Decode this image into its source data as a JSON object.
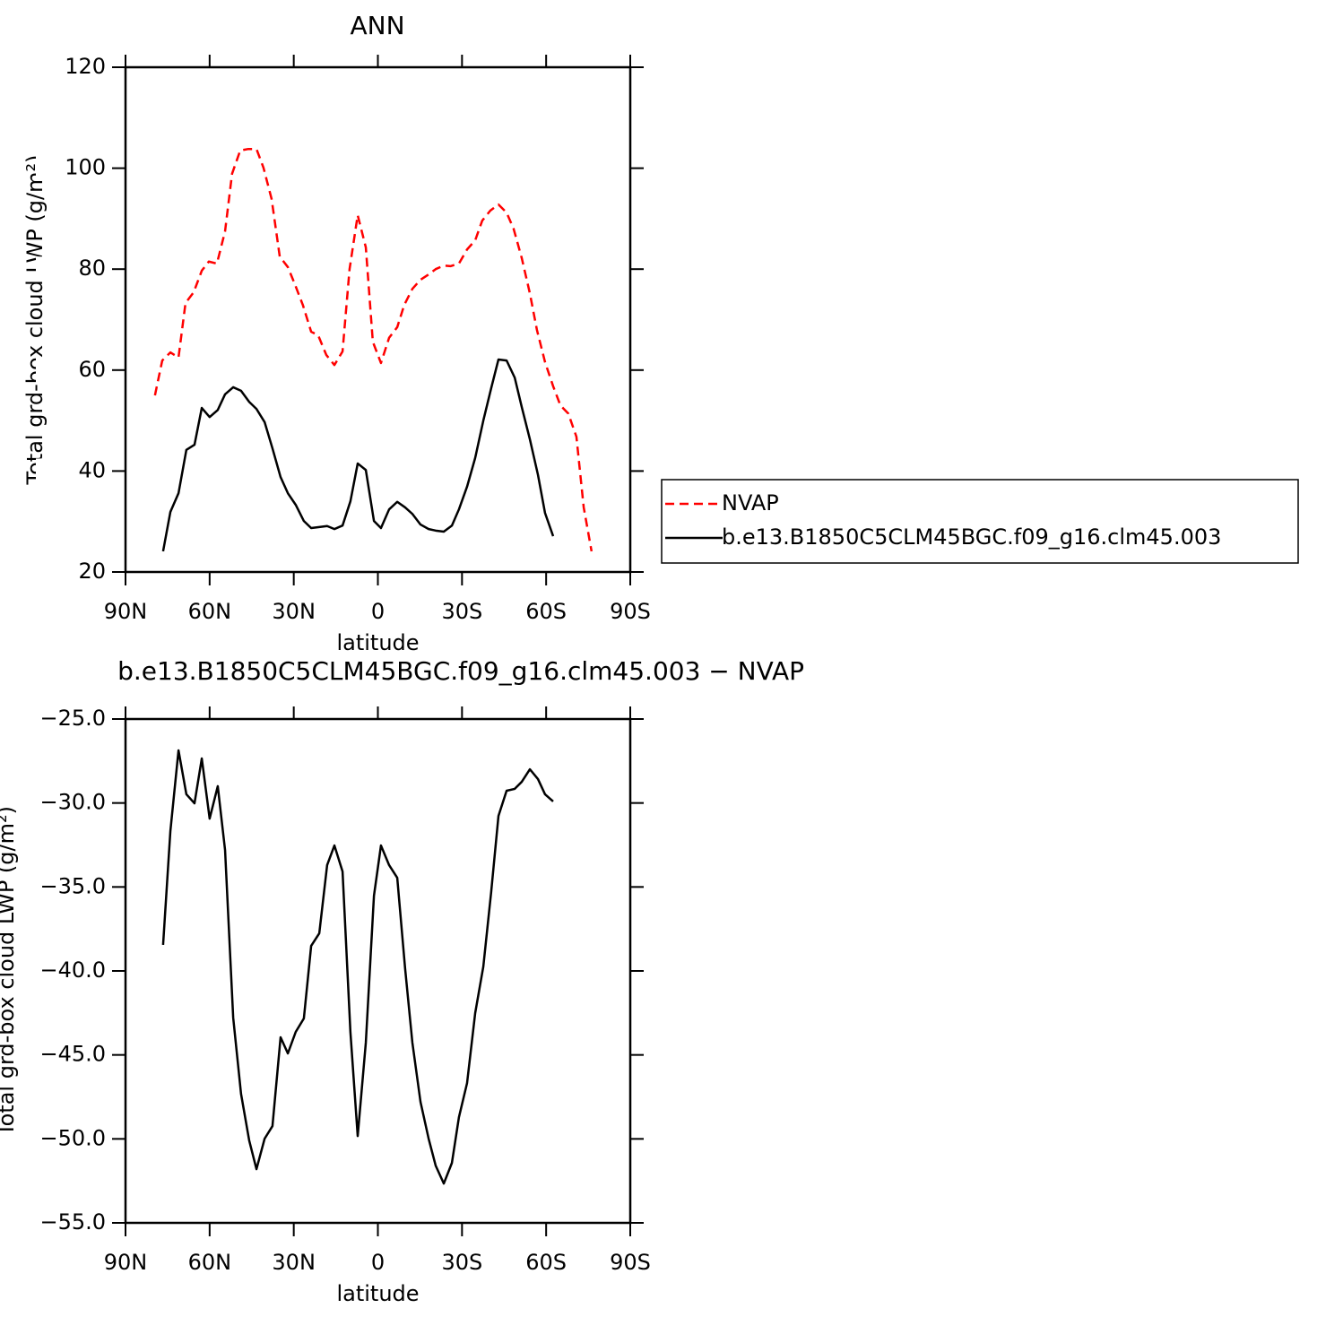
{
  "chart_data": [
    {
      "type": "line",
      "title": "ANN",
      "xlabel": "latitude",
      "ylabel": "Total grd-box cloud LWP (g/m²)",
      "xlim": [
        90,
        -90
      ],
      "xticks": [
        {
          "value": 90,
          "label": "90N"
        },
        {
          "value": 60,
          "label": "60N"
        },
        {
          "value": 30,
          "label": "30N"
        },
        0,
        {
          "value": -30,
          "label": "30S"
        },
        {
          "value": -60,
          "label": "60S"
        },
        {
          "value": -90,
          "label": "90S"
        }
      ],
      "ylim": [
        20,
        120
      ],
      "yticks": [
        20,
        40,
        60,
        80,
        100,
        120
      ],
      "grid": false,
      "legend": "right",
      "series": [
        {
          "name": "NVAP",
          "color": "#ff0000",
          "dash": true,
          "x": [
            79.5,
            76.9,
            74.0,
            71.1,
            68.6,
            65.7,
            62.8,
            60.3,
            57.4,
            54.5,
            52.0,
            49.1,
            46.2,
            43.3,
            40.8,
            37.9,
            35.0,
            32.1,
            29.6,
            26.7,
            23.8,
            21.3,
            18.4,
            15.5,
            12.6,
            10.1,
            7.2,
            4.3,
            1.8,
            -1.1,
            -4.0,
            -6.9,
            -9.4,
            -12.3,
            -15.2,
            -17.7,
            -20.6,
            -23.5,
            -26.0,
            -28.9,
            -31.8,
            -34.7,
            -37.2,
            -40.1,
            -43.0,
            -45.9,
            -48.4,
            -51.3,
            -54.2,
            -56.7,
            -59.6,
            -62.5,
            -65.1,
            -67.9,
            -70.8,
            -73.4,
            -76.2
          ],
          "values": [
            55.0,
            61.9,
            63.5,
            62.5,
            73.3,
            75.4,
            79.7,
            81.5,
            81.1,
            87.5,
            98.9,
            103.5,
            103.8,
            103.8,
            100.1,
            93.9,
            82.5,
            80.4,
            77.0,
            72.8,
            67.6,
            66.9,
            63.0,
            61.0,
            63.7,
            80.0,
            90.7,
            84.3,
            65.6,
            61.4,
            66.4,
            68.5,
            72.9,
            76.1,
            77.9,
            78.8,
            80.0,
            80.7,
            80.6,
            81.1,
            83.9,
            85.7,
            89.6,
            91.6,
            92.8,
            91.2,
            88.0,
            82.2,
            75.2,
            68.0,
            61.6,
            56.8,
            53.0,
            51.4,
            46.8,
            32.8,
            24.1
          ]
        },
        {
          "name": "b.e13.B1850C5CLM45BGC.f09_g16.clm45.003",
          "color": "#000000",
          "dash": false,
          "x": [
            76.6,
            74.0,
            71.1,
            68.3,
            65.4,
            62.8,
            60.0,
            57.1,
            54.5,
            51.6,
            48.8,
            45.9,
            43.3,
            40.4,
            37.6,
            34.7,
            32.1,
            29.3,
            26.4,
            23.8,
            20.9,
            18.1,
            15.5,
            12.6,
            9.8,
            7.2,
            4.3,
            1.4,
            -1.1,
            -4.0,
            -6.9,
            -9.7,
            -12.3,
            -15.2,
            -18.1,
            -20.6,
            -23.5,
            -26.4,
            -28.9,
            -31.8,
            -34.7,
            -37.6,
            -40.4,
            -43.0,
            -45.9,
            -48.8,
            -51.3,
            -54.2,
            -57.1,
            -59.6,
            -62.5
          ],
          "values": [
            24.1,
            31.9,
            35.6,
            44.2,
            45.2,
            52.5,
            50.7,
            52.1,
            55.2,
            56.6,
            55.9,
            53.7,
            52.3,
            49.7,
            44.5,
            38.8,
            35.6,
            33.3,
            30.1,
            28.7,
            28.9,
            29.1,
            28.5,
            29.2,
            34.0,
            41.5,
            40.2,
            30.1,
            28.7,
            32.4,
            33.9,
            32.8,
            31.5,
            29.4,
            28.5,
            28.2,
            28.0,
            29.2,
            32.4,
            36.9,
            42.6,
            50.0,
            56.4,
            62.1,
            61.9,
            58.5,
            52.7,
            46.3,
            39.2,
            31.7,
            27.1
          ]
        }
      ]
    },
    {
      "type": "line",
      "title": "b.e13.B1850C5CLM45BGC.f09_g16.clm45.003 − NVAP",
      "xlabel": "latitude",
      "ylabel": "Total grd-box cloud LWP (g/m²)",
      "xlim": [
        90,
        -90
      ],
      "xticks": [
        {
          "value": 90,
          "label": "90N"
        },
        {
          "value": 60,
          "label": "60N"
        },
        {
          "value": 30,
          "label": "30N"
        },
        0,
        {
          "value": -30,
          "label": "30S"
        },
        {
          "value": -60,
          "label": "60S"
        },
        {
          "value": -90,
          "label": "90S"
        }
      ],
      "ylim": [
        -55,
        -25
      ],
      "yticks": [
        {
          "value": -55,
          "label": "−55.0"
        },
        {
          "value": -50,
          "label": "−50.0"
        },
        {
          "value": -45,
          "label": "−45.0"
        },
        {
          "value": -40,
          "label": "−40.0"
        },
        {
          "value": -35,
          "label": "−35.0"
        },
        {
          "value": -30,
          "label": "−30.0"
        },
        {
          "value": -25,
          "label": "−25.0"
        }
      ],
      "grid": false,
      "series": [
        {
          "color": "#000000",
          "dash": false,
          "x": [
            76.6,
            74.0,
            71.1,
            68.3,
            65.4,
            62.8,
            60.0,
            57.1,
            54.5,
            51.6,
            48.8,
            45.9,
            43.3,
            40.4,
            37.6,
            34.7,
            32.1,
            29.3,
            26.4,
            23.8,
            20.9,
            18.1,
            15.5,
            12.6,
            9.8,
            7.2,
            4.3,
            1.4,
            -1.1,
            -4.0,
            -6.9,
            -9.7,
            -12.3,
            -15.2,
            -18.1,
            -20.6,
            -23.5,
            -26.4,
            -28.9,
            -31.8,
            -34.7,
            -37.6,
            -40.4,
            -43.0,
            -45.9,
            -48.8,
            -51.3,
            -54.2,
            -57.1,
            -59.6,
            -62.5
          ],
          "values": [
            -38.45,
            -31.67,
            -26.87,
            -29.48,
            -30.02,
            -27.35,
            -30.93,
            -29.0,
            -32.8,
            -42.78,
            -47.32,
            -50.09,
            -51.8,
            -49.99,
            -49.24,
            -43.95,
            -44.91,
            -43.63,
            -42.83,
            -38.51,
            -37.76,
            -33.7,
            -32.53,
            -34.08,
            -43.63,
            -49.83,
            -44.27,
            -35.52,
            -32.53,
            -33.7,
            -34.45,
            -39.84,
            -44.27,
            -47.8,
            -49.99,
            -51.59,
            -52.66,
            -51.43,
            -48.71,
            -46.68,
            -42.51,
            -39.74,
            -35.3,
            -30.77,
            -29.27,
            -29.16,
            -28.74,
            -27.99,
            -28.58,
            -29.48,
            -29.91
          ]
        }
      ]
    }
  ]
}
